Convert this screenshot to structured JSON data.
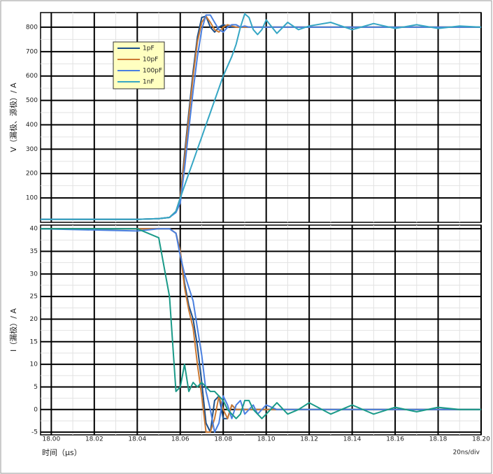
{
  "chart_data": [
    {
      "type": "line",
      "y_label": "V（漏极、源极）/ A",
      "x": [
        17.995,
        18.04,
        18.05,
        18.055,
        18.058,
        18.06,
        18.062,
        18.064,
        18.066,
        18.068,
        18.07,
        18.072,
        18.074,
        18.076,
        18.078,
        18.08,
        18.082,
        18.084,
        18.086,
        18.088,
        18.09,
        18.092,
        18.094,
        18.096,
        18.098,
        18.1,
        18.105,
        18.11,
        18.115,
        18.12,
        18.13,
        18.14,
        18.15,
        18.16,
        18.17,
        18.18,
        18.19,
        18.2
      ],
      "series": [
        {
          "name": "1pF",
          "color": "#1b4f8a",
          "values": [
            12,
            12,
            15,
            20,
            45,
            100,
            280,
            450,
            620,
            760,
            840,
            845,
            800,
            780,
            800,
            810,
            805,
            800,
            800,
            800,
            800,
            800,
            800,
            800,
            800,
            800,
            800,
            800,
            800,
            800,
            800,
            800,
            800,
            800,
            800,
            800,
            800,
            800
          ]
        },
        {
          "name": "10pF",
          "color": "#cc7a33",
          "values": [
            12,
            12,
            15,
            20,
            45,
            100,
            260,
            430,
            600,
            740,
            820,
            845,
            820,
            790,
            780,
            800,
            810,
            805,
            800,
            800,
            800,
            800,
            800,
            800,
            800,
            800,
            800,
            800,
            800,
            800,
            800,
            800,
            800,
            800,
            800,
            800,
            800,
            800
          ]
        },
        {
          "name": "100pF",
          "color": "#4a80e0",
          "values": [
            12,
            12,
            15,
            20,
            40,
            80,
            220,
            380,
            540,
            680,
            790,
            850,
            850,
            820,
            790,
            780,
            800,
            810,
            810,
            800,
            805,
            800,
            800,
            800,
            800,
            800,
            800,
            800,
            800,
            800,
            800,
            800,
            800,
            800,
            800,
            800,
            800,
            800
          ]
        },
        {
          "name": "1nF",
          "color": "#35a6c4",
          "values": [
            12,
            12,
            15,
            20,
            45,
            100,
            150,
            200,
            250,
            300,
            350,
            400,
            450,
            500,
            550,
            600,
            640,
            680,
            730,
            800,
            855,
            840,
            790,
            770,
            790,
            830,
            775,
            820,
            790,
            805,
            820,
            790,
            815,
            795,
            810,
            795,
            805,
            800
          ]
        }
      ],
      "xlim": [
        17.995,
        18.2
      ],
      "xticks": [
        18,
        18.02,
        18.04,
        18.06,
        18.08,
        18.1,
        18.12,
        18.14,
        18.16,
        18.18,
        18.2
      ],
      "ylim": [
        0,
        860
      ],
      "yticks": [
        100,
        200,
        300,
        400,
        500,
        600,
        700,
        800
      ],
      "grid": true,
      "legend": "upper-left"
    },
    {
      "type": "line",
      "y_label": "I（漏极）/ A",
      "x_label": "时间（μs）",
      "note": "20ns/div",
      "x": [
        17.995,
        18.04,
        18.05,
        18.055,
        18.058,
        18.06,
        18.062,
        18.064,
        18.066,
        18.068,
        18.07,
        18.072,
        18.074,
        18.076,
        18.078,
        18.08,
        18.082,
        18.084,
        18.086,
        18.088,
        18.09,
        18.092,
        18.094,
        18.096,
        18.098,
        18.1,
        18.105,
        18.11,
        18.115,
        18.12,
        18.13,
        18.14,
        18.15,
        18.16,
        18.17,
        18.18,
        18.19,
        18.2
      ],
      "series": [
        {
          "name": "1pF",
          "color": "#1b4f8a",
          "values": [
            40,
            40,
            40,
            40,
            39,
            35,
            28,
            23,
            20,
            14,
            6,
            -3,
            -5,
            2,
            3,
            -2,
            -2,
            1,
            0,
            0,
            0,
            0,
            0,
            0,
            0,
            0,
            0,
            0,
            0,
            0,
            0,
            0,
            0,
            0,
            0,
            0,
            0,
            0
          ]
        },
        {
          "name": "10pF",
          "color": "#cc7a33",
          "values": [
            40,
            40,
            40,
            40,
            39,
            35,
            27,
            22,
            18,
            10,
            3,
            -5,
            -5,
            -2,
            3,
            0,
            -2,
            1,
            0,
            0,
            0,
            0,
            0,
            0,
            0,
            0,
            0,
            0,
            0,
            0,
            0,
            0,
            0,
            0,
            0,
            0,
            0,
            0
          ]
        },
        {
          "name": "100pF",
          "color": "#4a80e0",
          "values": [
            40,
            39.5,
            40,
            40,
            39,
            34,
            30,
            27,
            24,
            18,
            12,
            4,
            0,
            -5,
            -3,
            3,
            1,
            -2,
            1,
            2,
            -1,
            0,
            1,
            -1,
            0,
            1,
            0,
            0,
            0,
            0,
            0,
            0,
            0,
            0,
            0,
            0,
            0,
            0
          ]
        },
        {
          "name": "1nF",
          "color": "#1a9a88",
          "values": [
            40,
            40,
            38,
            25,
            4,
            5,
            10,
            4,
            6,
            5,
            6,
            5,
            4,
            4,
            3,
            2,
            0,
            -1,
            -2,
            -1,
            2,
            2,
            0,
            -1,
            -2,
            -1,
            1.5,
            -1,
            0,
            1.5,
            -1,
            1,
            -1,
            0.5,
            -0.5,
            0.5,
            0,
            0
          ]
        }
      ],
      "xlim": [
        17.995,
        18.2
      ],
      "xticks": [
        {
          "value": 18,
          "label": "18.00"
        },
        18.02,
        18.04,
        18.06,
        18.08,
        {
          "value": 18.1,
          "label": "18.10"
        },
        18.12,
        18.14,
        18.16,
        18.18,
        {
          "value": 18.2,
          "label": "18.20"
        }
      ],
      "ylim": [
        -5.6,
        40.8
      ],
      "yticks": [
        -5,
        0,
        5,
        10,
        15,
        20,
        25,
        30,
        35,
        40
      ],
      "grid": true
    }
  ]
}
